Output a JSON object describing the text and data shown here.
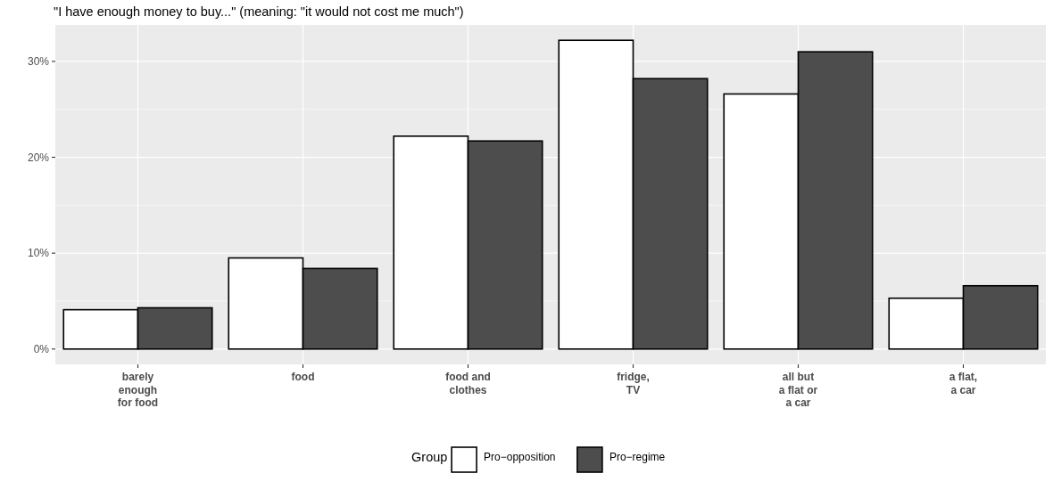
{
  "chart_data": {
    "type": "bar",
    "title": "\"I have enough money to buy...\" (meaning: \"it would not cost me much\")",
    "categories": [
      "barely\nenough\nfor food",
      "food",
      "food and\nclothes",
      "fridge,\nTV",
      "all but\na flat or\na car",
      "a flat,\na car"
    ],
    "series": [
      {
        "name": "Pro−opposition",
        "color": "#ffffff",
        "values": [
          4.1,
          9.5,
          22.2,
          32.2,
          26.6,
          5.3
        ]
      },
      {
        "name": "Pro−regime",
        "color": "#4d4d4d",
        "values": [
          4.3,
          8.4,
          21.7,
          28.2,
          31.0,
          6.6
        ]
      }
    ],
    "ylim": [
      -1.6,
      33.8
    ],
    "yticks": [
      {
        "value": 0,
        "label": "0%"
      },
      {
        "value": 5,
        "label": null
      },
      {
        "value": 10,
        "label": "10%"
      },
      {
        "value": 15,
        "label": null
      },
      {
        "value": 20,
        "label": "20%"
      },
      {
        "value": 25,
        "label": null
      },
      {
        "value": 30,
        "label": "30%"
      }
    ],
    "grid": true,
    "legend": "bottom",
    "legend_title": "Group"
  }
}
